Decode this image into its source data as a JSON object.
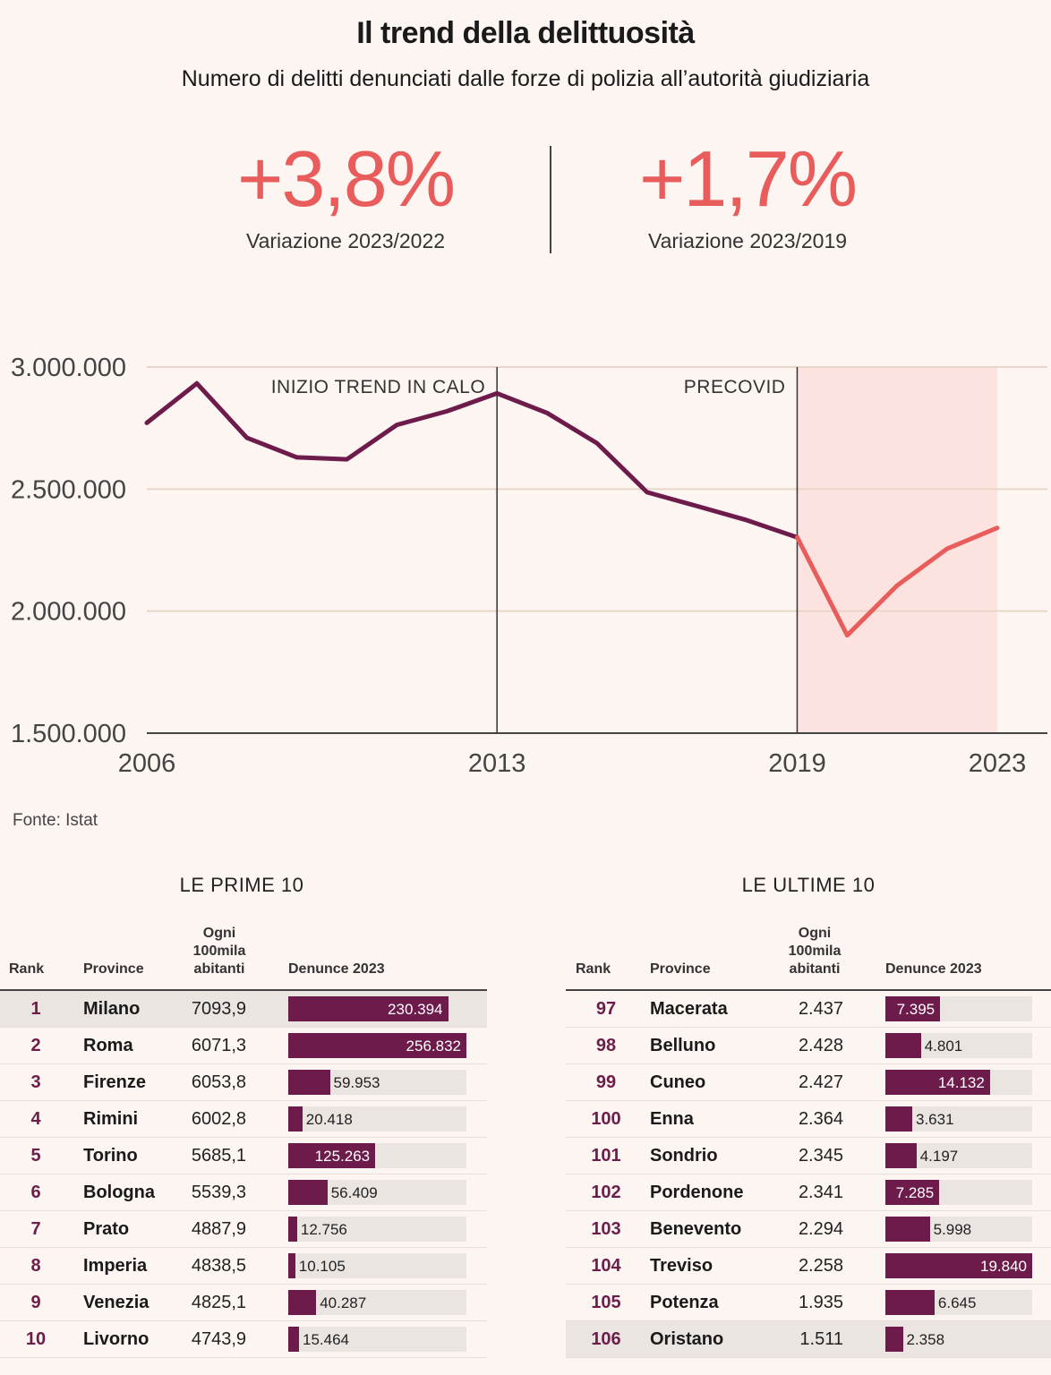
{
  "title": "Il trend della delittuosità",
  "subtitle": "Numero di delitti denunciati dalle forze di polizia all’autorità giudiziaria",
  "kpis": [
    {
      "value": "+3,8%",
      "label": "Variazione 2023/2022"
    },
    {
      "value": "+1,7%",
      "label": "Variazione 2023/2019"
    }
  ],
  "source": "Fonte: Istat",
  "colors": {
    "accent": "#e85c5c",
    "line": "#6d1b4b",
    "covid_band": "#fde3df",
    "background": "#fdf5f1"
  },
  "chart_data": {
    "type": "line",
    "x": [
      2006,
      2007,
      2008,
      2009,
      2010,
      2011,
      2012,
      2013,
      2014,
      2015,
      2016,
      2017,
      2018,
      2019,
      2020,
      2021,
      2022,
      2023
    ],
    "series": [
      {
        "values": [
          2771000,
          2933000,
          2710000,
          2630000,
          2622000,
          2763000,
          2819000,
          2892000,
          2812000,
          2688000,
          2487000,
          2430000,
          2372000,
          2302000,
          1901000,
          2105000,
          2256000,
          2341000
        ]
      }
    ],
    "highlight_from": 2019,
    "ylim": [
      1500000,
      3000000
    ],
    "yticks": [
      3000000,
      2500000,
      2000000,
      1500000
    ],
    "ytick_labels": [
      "3.000.000",
      "2.500.000",
      "2.000.000",
      "1.500.000"
    ],
    "xticks": [
      2006,
      2013,
      2019,
      2023
    ],
    "xtick_labels": [
      "2006",
      "2013",
      "2019",
      "2023"
    ],
    "annotations": [
      {
        "x": 2013,
        "text": "INIZIO TREND IN CALO"
      },
      {
        "x": 2019,
        "text": "PRECOVID"
      }
    ],
    "shaded_range": [
      2019,
      2023
    ],
    "grid": true
  },
  "tables": [
    {
      "heading": "LE PRIME 10",
      "columns": [
        "Rank",
        "Province",
        "Ogni 100mila abitanti",
        "Denunce 2023"
      ],
      "highlight_rank": "1",
      "bar_max": 256832,
      "rows": [
        {
          "rank": "1",
          "province": "Milano",
          "rate": "7093,9",
          "reports": 230394,
          "reports_label": "230.394"
        },
        {
          "rank": "2",
          "province": "Roma",
          "rate": "6071,3",
          "reports": 256832,
          "reports_label": "256.832"
        },
        {
          "rank": "3",
          "province": "Firenze",
          "rate": "6053,8",
          "reports": 59953,
          "reports_label": "59.953"
        },
        {
          "rank": "4",
          "province": "Rimini",
          "rate": "6002,8",
          "reports": 20418,
          "reports_label": "20.418"
        },
        {
          "rank": "5",
          "province": "Torino",
          "rate": "5685,1",
          "reports": 125263,
          "reports_label": "125.263"
        },
        {
          "rank": "6",
          "province": "Bologna",
          "rate": "5539,3",
          "reports": 56409,
          "reports_label": "56.409"
        },
        {
          "rank": "7",
          "province": "Prato",
          "rate": "4887,9",
          "reports": 12756,
          "reports_label": "12.756"
        },
        {
          "rank": "8",
          "province": "Imperia",
          "rate": "4838,5",
          "reports": 10105,
          "reports_label": "10.105"
        },
        {
          "rank": "9",
          "province": "Venezia",
          "rate": "4825,1",
          "reports": 40287,
          "reports_label": "40.287"
        },
        {
          "rank": "10",
          "province": "Livorno",
          "rate": "4743,9",
          "reports": 15464,
          "reports_label": "15.464"
        }
      ]
    },
    {
      "heading": "LE ULTIME 10",
      "columns": [
        "Rank",
        "Province",
        "Ogni 100mila abitanti",
        "Denunce 2023"
      ],
      "highlight_rank": "106",
      "bar_max": 19840,
      "rows": [
        {
          "rank": "97",
          "province": "Macerata",
          "rate": "2.437",
          "reports": 7395,
          "reports_label": "7.395"
        },
        {
          "rank": "98",
          "province": "Belluno",
          "rate": "2.428",
          "reports": 4801,
          "reports_label": "4.801"
        },
        {
          "rank": "99",
          "province": "Cuneo",
          "rate": "2.427",
          "reports": 14132,
          "reports_label": "14.132"
        },
        {
          "rank": "100",
          "province": "Enna",
          "rate": "2.364",
          "reports": 3631,
          "reports_label": "3.631"
        },
        {
          "rank": "101",
          "province": "Sondrio",
          "rate": "2.345",
          "reports": 4197,
          "reports_label": "4.197"
        },
        {
          "rank": "102",
          "province": "Pordenone",
          "rate": "2.341",
          "reports": 7285,
          "reports_label": "7.285"
        },
        {
          "rank": "103",
          "province": "Benevento",
          "rate": "2.294",
          "reports": 5998,
          "reports_label": "5.998"
        },
        {
          "rank": "104",
          "province": "Treviso",
          "rate": "2.258",
          "reports": 19840,
          "reports_label": "19.840"
        },
        {
          "rank": "105",
          "province": "Potenza",
          "rate": "1.935",
          "reports": 6645,
          "reports_label": "6.645"
        },
        {
          "rank": "106",
          "province": "Oristano",
          "rate": "1.511",
          "reports": 2358,
          "reports_label": "2.358"
        }
      ]
    }
  ]
}
